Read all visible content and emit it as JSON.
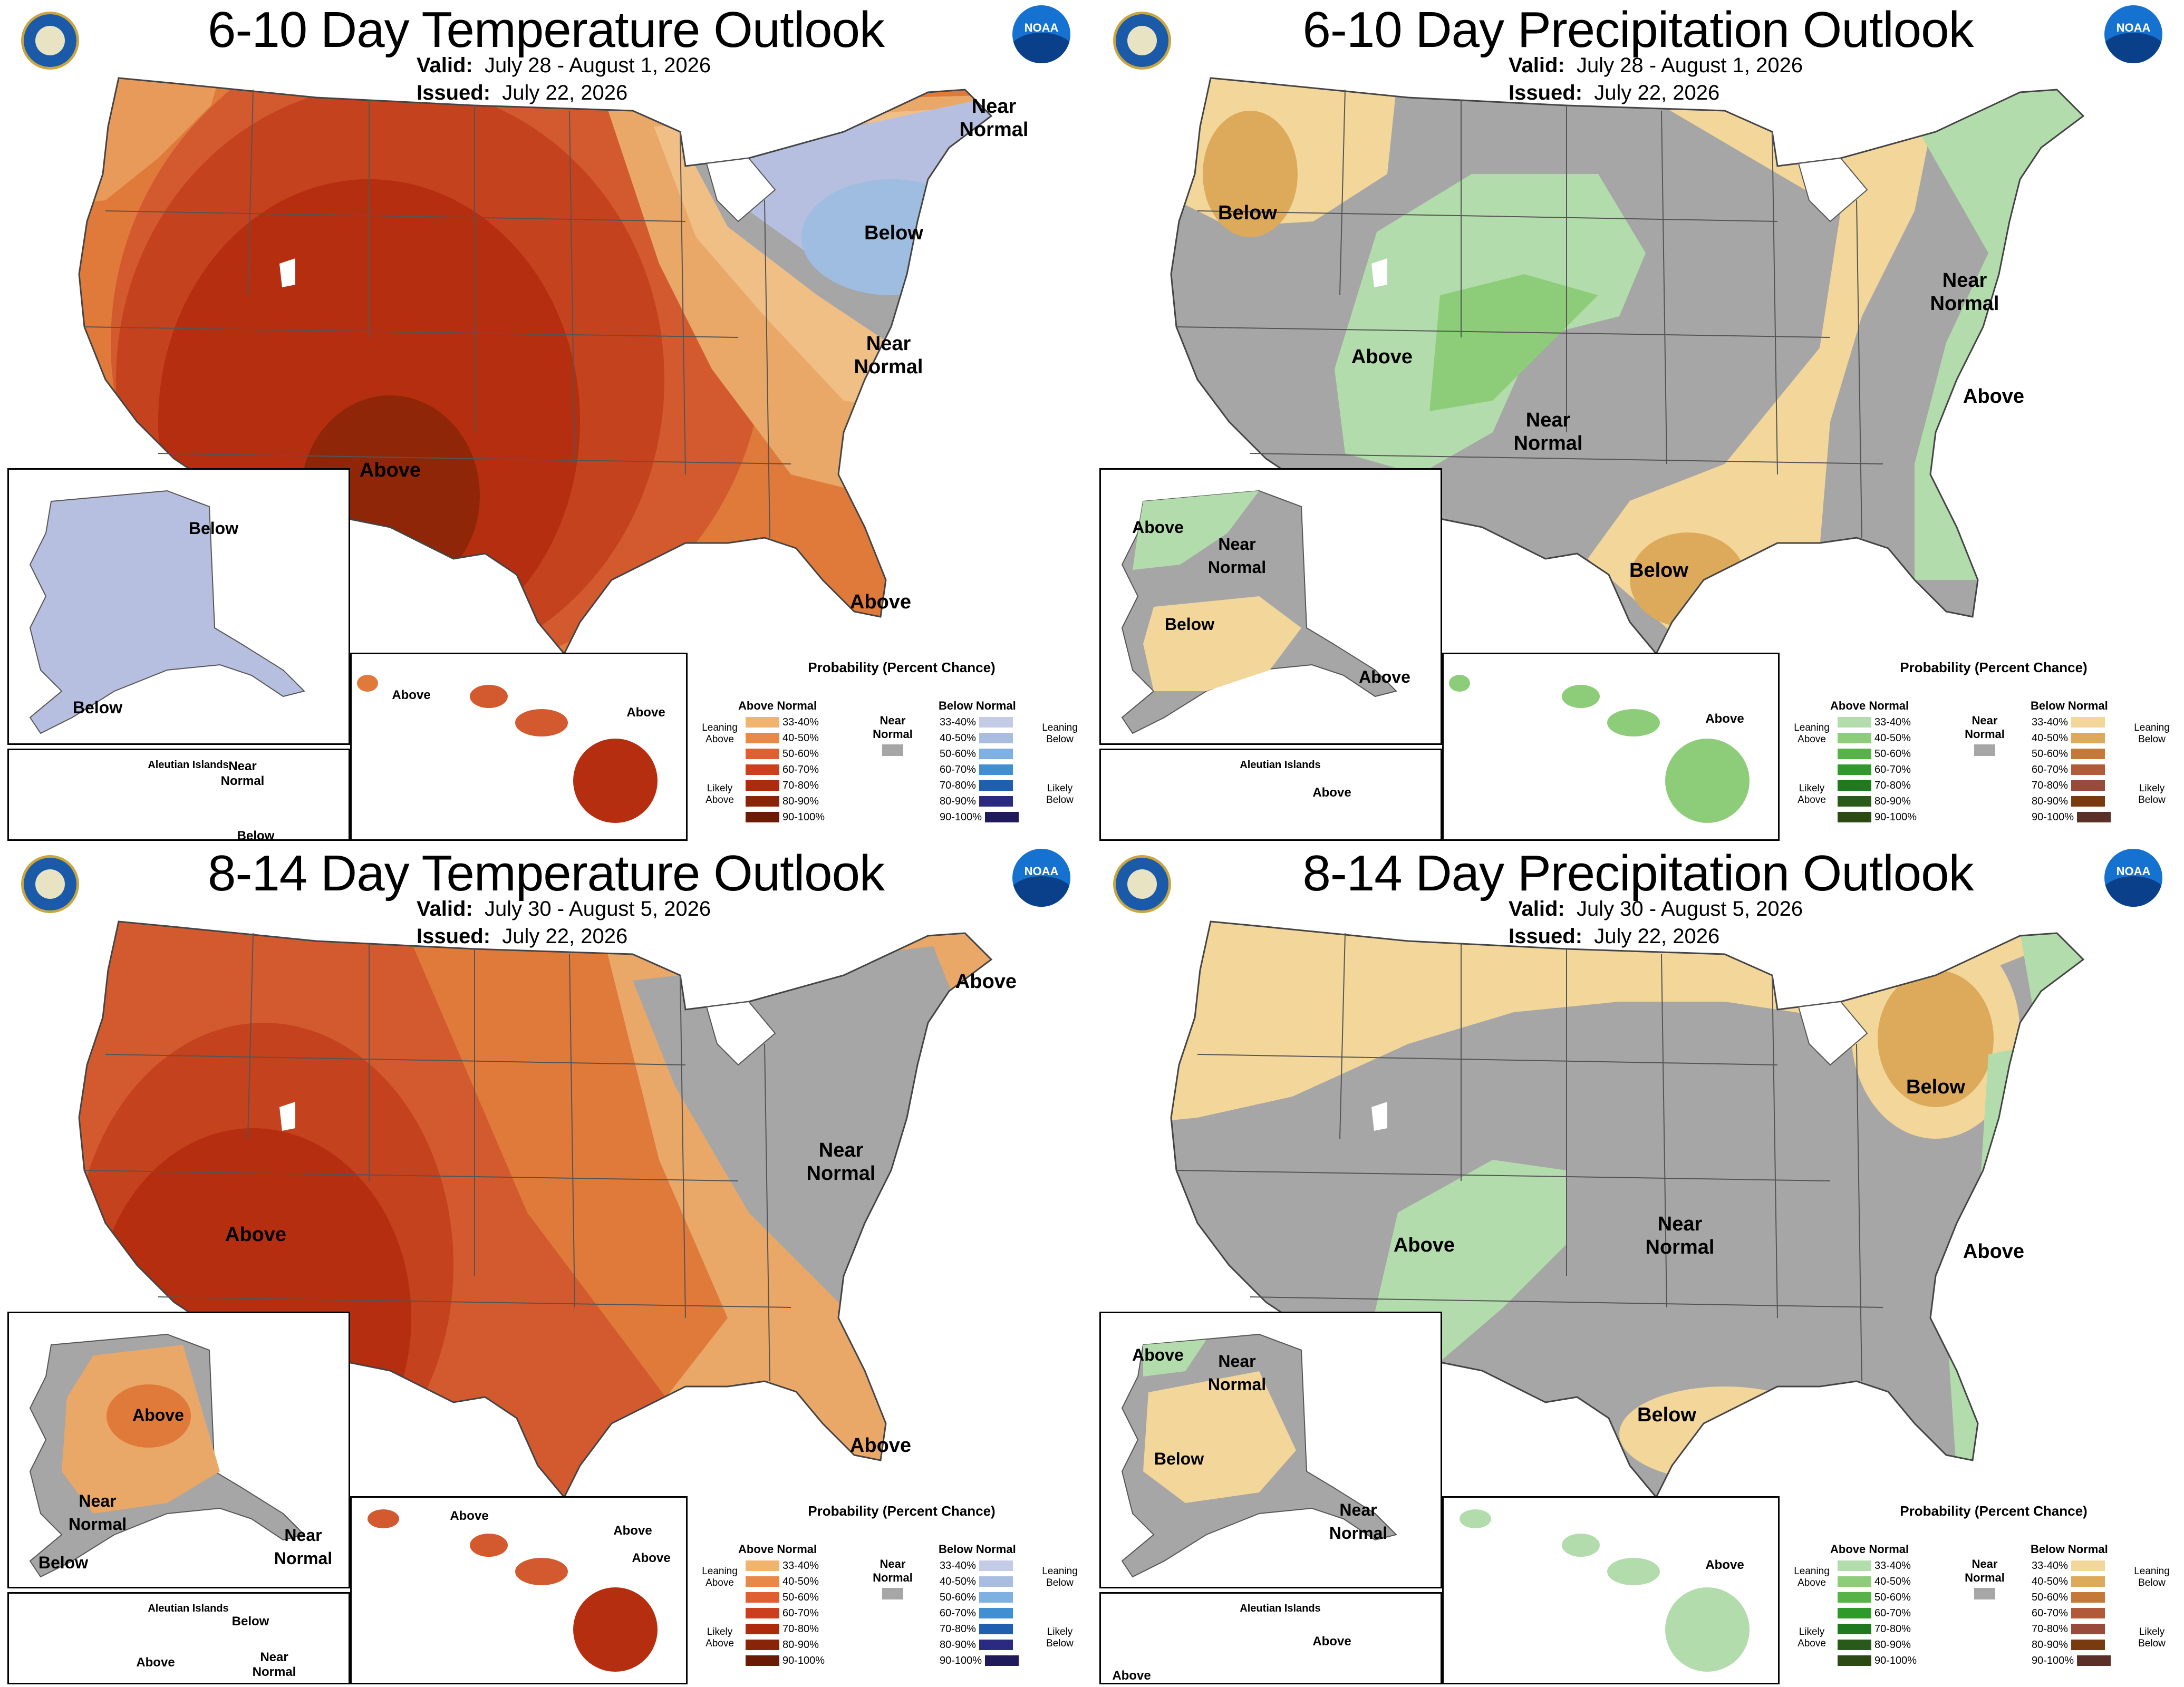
{
  "panels": [
    {
      "title": "6-10 Day Temperature Outlook",
      "valid_label": "Valid:",
      "valid": "July 28 - August 1, 2026",
      "issued_label": "Issued:",
      "issued": "July 22, 2026",
      "type": "temperature",
      "labels": {
        "a": "Near Normal",
        "b": "Below",
        "c": "Near Normal",
        "d": "Above",
        "e": "Above",
        "f": "Below",
        "g": "Below",
        "h": "Near Normal",
        "i": "Below",
        "j": "Above",
        "k": "Above"
      },
      "zones": [
        "#e07a3a",
        "#d35a2f",
        "#c4421d",
        "#b52e0f",
        "#8f2608",
        "#e9a868",
        "#f0bf86",
        "#b7bfe0",
        "#9fbde0",
        "#a6a6a6"
      ]
    },
    {
      "title": "6-10 Day Precipitation Outlook",
      "valid_label": "Valid:",
      "valid": "July 28 - August 1, 2026",
      "issued_label": "Issued:",
      "issued": "July 22, 2026",
      "type": "precipitation",
      "labels": {
        "a": "Below",
        "b": "Near Normal",
        "c": "Above",
        "d": "Near Normal",
        "e": "Above",
        "f": "Below",
        "g": "Above",
        "h": "Near Normal",
        "i": "Below",
        "j": "Above",
        "k": "Above",
        "l": "Above"
      }
    },
    {
      "title": "8-14 Day Temperature Outlook",
      "valid_label": "Valid:",
      "valid": "July 30 - August 5, 2026",
      "issued_label": "Issued:",
      "issued": "July 22, 2026",
      "type": "temperature",
      "labels": {
        "a": "Above",
        "b": "Near Normal",
        "c": "Above",
        "d": "Above",
        "e": "Above",
        "f": "Near Normal",
        "g": "Near Normal",
        "h": "Below",
        "i": "Below",
        "j": "Near Normal",
        "k": "Above",
        "l": "Above",
        "m": "Above",
        "n": "Above"
      }
    },
    {
      "title": "8-14 Day Precipitation Outlook",
      "valid_label": "Valid:",
      "valid": "July 30 - August 5, 2026",
      "issued_label": "Issued:",
      "issued": "July 22, 2026",
      "type": "precipitation",
      "labels": {
        "a": "Below",
        "b": "Above",
        "c": "Near Normal",
        "d": "Above",
        "e": "Below",
        "f": "Above",
        "g": "Near Normal",
        "h": "Below",
        "i": "Near Normal",
        "j": "Above",
        "k": "Above",
        "l": "Above"
      }
    }
  ],
  "aleutian": "Aleutian Islands",
  "legend": {
    "title": "Probability (Percent Chance)",
    "temperature": {
      "left_head": "Above Normal",
      "right_head": "Below Normal",
      "left_lean": "Leaning Above",
      "left_likely": "Likely Above",
      "right_lean": "Leaning Below",
      "right_likely": "Likely Below",
      "near": "Near Normal",
      "left_colors": [
        "#f0b46e",
        "#e8894a",
        "#df5f33",
        "#cc3f1e",
        "#ad2a0c",
        "#8a2408",
        "#6b1a05"
      ],
      "right_colors": [
        "#c4cbe6",
        "#a9bde0",
        "#7fb0e2",
        "#3f8fd2",
        "#1f5fb0",
        "#2a2a80",
        "#201a5a"
      ]
    },
    "precipitation": {
      "left_head": "Above Normal",
      "right_head": "Below Normal",
      "left_lean": "Leaning Above",
      "left_likely": "Likely Above",
      "right_lean": "Leaning Below",
      "right_likely": "Likely Below",
      "near": "Near Normal",
      "left_colors": [
        "#b3dcac",
        "#8dcd7a",
        "#55b347",
        "#2e9a2a",
        "#1f7a1f",
        "#2a5a1a",
        "#2e4a14"
      ],
      "right_colors": [
        "#f3d69a",
        "#dcaa5a",
        "#c4793a",
        "#b05a3a",
        "#9a4a3a",
        "#7a3a10",
        "#5a3028"
      ]
    },
    "ranges": [
      "33-40%",
      "40-50%",
      "50-60%",
      "60-70%",
      "70-80%",
      "80-90%",
      "90-100%"
    ]
  }
}
